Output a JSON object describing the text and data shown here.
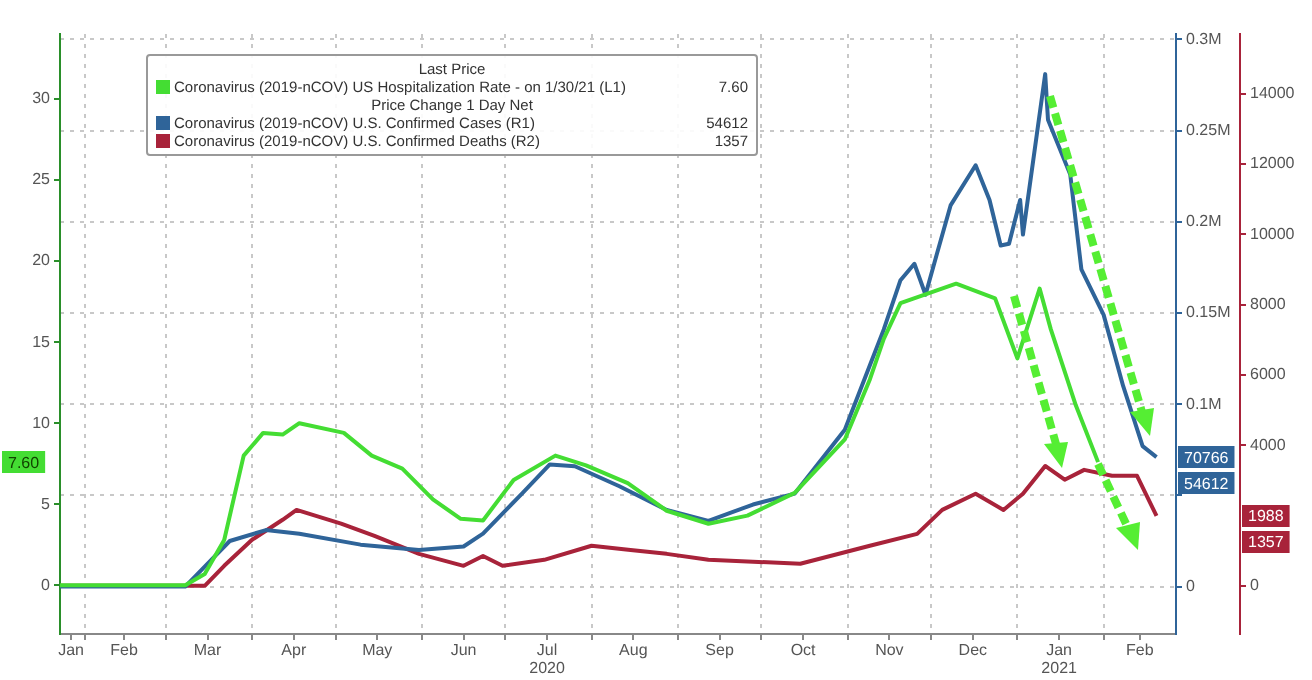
{
  "chart_data": {
    "type": "line",
    "legend_title": "Last Price",
    "legend": "top left",
    "grid": true,
    "xlim": [
      "2020-01-23",
      "2021-02-27"
    ],
    "xticks": [
      {
        "value": "2020-01-27",
        "label": "Jan"
      },
      {
        "value": "2020-02-01",
        "label": null
      },
      {
        "value": "2020-02-15",
        "label": "Feb"
      },
      {
        "value": "2020-03-01",
        "label": null
      },
      {
        "value": "2020-03-16",
        "label": "Mar"
      },
      {
        "value": "2020-04-01",
        "label": null
      },
      {
        "value": "2020-04-16",
        "label": "Apr"
      },
      {
        "value": "2020-05-01",
        "label": null
      },
      {
        "value": "2020-05-16",
        "label": "May"
      },
      {
        "value": "2020-06-01",
        "label": null
      },
      {
        "value": "2020-06-16",
        "label": "Jun"
      },
      {
        "value": "2020-07-01",
        "label": null
      },
      {
        "value": "2020-07-16",
        "label": "Jul\n2020"
      },
      {
        "value": "2020-08-01",
        "label": null
      },
      {
        "value": "2020-08-16",
        "label": "Aug"
      },
      {
        "value": "2020-09-01",
        "label": null
      },
      {
        "value": "2020-09-16",
        "label": "Sep"
      },
      {
        "value": "2020-10-01",
        "label": null
      },
      {
        "value": "2020-10-16",
        "label": "Oct"
      },
      {
        "value": "2020-11-01",
        "label": null
      },
      {
        "value": "2020-11-16",
        "label": "Nov"
      },
      {
        "value": "2020-12-01",
        "label": null
      },
      {
        "value": "2020-12-16",
        "label": "Dec"
      },
      {
        "value": "2021-01-01",
        "label": null
      },
      {
        "value": "2021-01-16",
        "label": "Jan\n2021"
      },
      {
        "value": "2021-02-01",
        "label": null
      },
      {
        "value": "2021-02-14",
        "label": "Feb"
      }
    ],
    "ylim": [
      -3,
      34
    ],
    "yticks": [
      0,
      5,
      10,
      15,
      20,
      25,
      30
    ],
    "y2lim": [
      -26000,
      303000
    ],
    "y2ticks": [
      0,
      {
        "value": 50000,
        "label": null
      },
      {
        "value": 100000,
        "label": "0.1M"
      },
      {
        "value": 150000,
        "label": "0.15M"
      },
      {
        "value": 200000,
        "label": "0.2M"
      },
      {
        "value": 250000,
        "label": "0.25M"
      },
      {
        "value": 300000,
        "label": "0.3M"
      }
    ],
    "y3lim": [
      -1370,
      15700
    ],
    "y3ticks": [
      0,
      4000,
      6000,
      8000,
      10000,
      12000,
      14000
    ],
    "series": [
      {
        "name": "Coronavirus (2019-nCOV) US Hospitalization Rate -  on 1/30/21  (L1)",
        "color": "#44dd33",
        "x": [
          "2020-01-23",
          "2020-03-08",
          "2020-03-15",
          "2020-03-22",
          "2020-03-29",
          "2020-04-05",
          "2020-04-12",
          "2020-04-18",
          "2020-05-04",
          "2020-05-14",
          "2020-05-25",
          "2020-06-05",
          "2020-06-15",
          "2020-06-23",
          "2020-07-04",
          "2020-07-19",
          "2020-07-30",
          "2020-08-14",
          "2020-08-28",
          "2020-09-12",
          "2020-09-26",
          "2020-10-13",
          "2020-10-31",
          "2020-11-09",
          "2020-11-14",
          "2020-11-20",
          "2020-12-10",
          "2020-12-24",
          "2021-01-01",
          "2021-01-09",
          "2021-01-13",
          "2021-01-22",
          "2021-01-30"
        ],
        "values": [
          0,
          0,
          0.7,
          2.8,
          8.0,
          9.4,
          9.3,
          10.0,
          9.4,
          8.0,
          7.2,
          5.3,
          4.1,
          4.0,
          6.5,
          8.0,
          7.4,
          6.3,
          4.6,
          3.8,
          4.3,
          5.7,
          9.0,
          12.7,
          15.2,
          17.4,
          18.6,
          17.7,
          14.0,
          18.3,
          15.8,
          11.1,
          7.6
        ]
      },
      {
        "name": "Coronavirus (2019-nCOV) U.S. Confirmed Cases  (R1)",
        "color": "#2f6499",
        "axis": "y2",
        "x": [
          "2020-01-23",
          "2020-03-08",
          "2020-03-15",
          "2020-03-24",
          "2020-04-06",
          "2020-04-18",
          "2020-05-10",
          "2020-05-31",
          "2020-06-16",
          "2020-06-23",
          "2020-07-07",
          "2020-07-17",
          "2020-07-26",
          "2020-08-11",
          "2020-08-28",
          "2020-09-12",
          "2020-09-28",
          "2020-10-13",
          "2020-10-31",
          "2020-11-14",
          "2020-11-20",
          "2020-11-25",
          "2020-11-29",
          "2020-12-03",
          "2020-12-08",
          "2020-12-17",
          "2020-12-22",
          "2020-12-26",
          "2020-12-29",
          "2021-01-02",
          "2021-01-03",
          "2021-01-08",
          "2021-01-11",
          "2021-01-12",
          "2021-01-20",
          "2021-01-24",
          "2021-02-01",
          "2021-02-08",
          "2021-02-15",
          "2021-02-20"
        ],
        "values": [
          0,
          0,
          11000,
          25000,
          31000,
          29000,
          23000,
          20000,
          22000,
          29000,
          51000,
          67000,
          66000,
          55000,
          42000,
          36000,
          45000,
          51000,
          86000,
          141000,
          168000,
          177000,
          160000,
          182000,
          209000,
          231000,
          212000,
          187000,
          188000,
          212000,
          193000,
          248000,
          281000,
          256000,
          226000,
          174000,
          149000,
          110000,
          77000,
          71000
        ]
      },
      {
        "name": "Coronavirus (2019-nCOV) U.S. Confirmed Deaths  (R2)",
        "color": "#a8233a",
        "axis": "y3",
        "x": [
          "2020-01-23",
          "2020-03-15",
          "2020-03-22",
          "2020-04-01",
          "2020-04-12",
          "2020-04-17",
          "2020-05-03",
          "2020-05-15",
          "2020-05-31",
          "2020-06-16",
          "2020-06-23",
          "2020-06-30",
          "2020-07-15",
          "2020-08-01",
          "2020-08-15",
          "2020-08-28",
          "2020-09-12",
          "2020-10-15",
          "2020-11-09",
          "2020-11-26",
          "2020-12-05",
          "2020-12-17",
          "2020-12-27",
          "2021-01-03",
          "2021-01-11",
          "2021-01-18",
          "2021-01-25",
          "2021-02-04",
          "2021-02-13",
          "2021-02-20"
        ],
        "values": [
          0,
          0,
          570,
          1310,
          1880,
          2160,
          1770,
          1420,
          910,
          570,
          850,
          570,
          740,
          1140,
          1020,
          910,
          740,
          630,
          1140,
          1480,
          2160,
          2620,
          2160,
          2620,
          3410,
          3020,
          3300,
          3130,
          3130,
          1990
        ]
      }
    ],
    "annotations": [
      "Price Change 1 Day Net",
      "7.60",
      "54612",
      "1357",
      "7.60",
      "70766",
      "54612",
      "1988",
      "1357"
    ]
  }
}
